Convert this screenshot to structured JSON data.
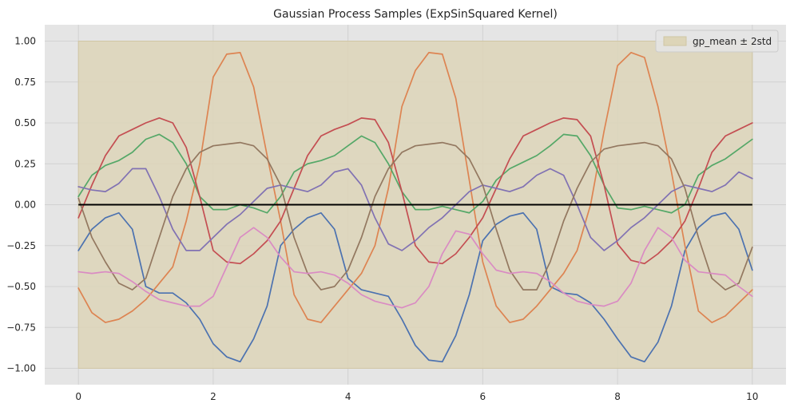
{
  "chart_data": {
    "type": "line",
    "title": "Gaussian Process Samples (ExpSinSquared Kernel)",
    "xlabel": "",
    "ylabel": "",
    "xlim": [
      -0.5,
      10.5
    ],
    "ylim": [
      -1.1,
      1.1
    ],
    "x_ticks": [
      0,
      2,
      4,
      6,
      8,
      10
    ],
    "x_tick_labels": [
      "0",
      "2",
      "4",
      "6",
      "8",
      "10"
    ],
    "y_ticks": [
      -1.0,
      -0.75,
      -0.5,
      -0.25,
      0.0,
      0.25,
      0.5,
      0.75,
      1.0
    ],
    "y_tick_labels": [
      "−1.00",
      "−0.75",
      "−0.50",
      "−0.25",
      "0.00",
      "0.25",
      "0.50",
      "0.75",
      "1.00"
    ],
    "grid": true,
    "legend_position": "top-right",
    "legend": [
      {
        "label": "gp_mean ± 2std",
        "color": "#ddd5b8"
      }
    ],
    "band": {
      "label": "gp_mean ± 2std",
      "x_range": [
        0,
        10
      ],
      "lower": -1.0,
      "upper": 1.0,
      "color": "#ddd5b8"
    },
    "mean": {
      "x_range": [
        0,
        10
      ],
      "value": 0.0,
      "color": "#000000"
    },
    "x": [
      0,
      0.2,
      0.4,
      0.6,
      0.8,
      1.0,
      1.2,
      1.4,
      1.6,
      1.8,
      2.0,
      2.2,
      2.4,
      2.6,
      2.8,
      3.0,
      3.2,
      3.4,
      3.6,
      3.8,
      4.0,
      4.2,
      4.4,
      4.6,
      4.8,
      5.0,
      5.2,
      5.4,
      5.6,
      5.8,
      6.0,
      6.2,
      6.4,
      6.6,
      6.8,
      7.0,
      7.2,
      7.4,
      7.6,
      7.8,
      8.0,
      8.2,
      8.4,
      8.6,
      8.8,
      9.0,
      9.2,
      9.4,
      9.6,
      9.8,
      10.0
    ],
    "series": [
      {
        "color": "#4c72b0",
        "values": [
          -0.28,
          -0.15,
          -0.08,
          -0.05,
          -0.15,
          -0.5,
          -0.54,
          -0.54,
          -0.6,
          -0.7,
          -0.85,
          -0.93,
          -0.96,
          -0.82,
          -0.62,
          -0.25,
          -0.15,
          -0.08,
          -0.05,
          -0.15,
          -0.45,
          -0.52,
          -0.54,
          -0.56,
          -0.7,
          -0.86,
          -0.95,
          -0.96,
          -0.8,
          -0.55,
          -0.22,
          -0.12,
          -0.07,
          -0.05,
          -0.15,
          -0.5,
          -0.54,
          -0.55,
          -0.6,
          -0.7,
          -0.82,
          -0.93,
          -0.96,
          -0.84,
          -0.62,
          -0.28,
          -0.14,
          -0.07,
          -0.05,
          -0.15,
          -0.4
        ]
      },
      {
        "color": "#dd8452",
        "values": [
          -0.51,
          -0.66,
          -0.72,
          -0.7,
          -0.65,
          -0.58,
          -0.48,
          -0.38,
          -0.1,
          0.25,
          0.78,
          0.92,
          0.93,
          0.72,
          0.3,
          -0.1,
          -0.55,
          -0.7,
          -0.72,
          -0.62,
          -0.52,
          -0.42,
          -0.25,
          0.1,
          0.6,
          0.82,
          0.93,
          0.92,
          0.65,
          0.15,
          -0.35,
          -0.62,
          -0.72,
          -0.7,
          -0.62,
          -0.52,
          -0.42,
          -0.28,
          0.0,
          0.45,
          0.85,
          0.93,
          0.9,
          0.6,
          0.2,
          -0.25,
          -0.65,
          -0.72,
          -0.68,
          -0.6,
          -0.52
        ]
      },
      {
        "color": "#55a868",
        "values": [
          0.05,
          0.18,
          0.24,
          0.27,
          0.32,
          0.4,
          0.43,
          0.38,
          0.25,
          0.05,
          -0.03,
          -0.03,
          0.0,
          -0.02,
          -0.05,
          0.05,
          0.2,
          0.25,
          0.27,
          0.3,
          0.36,
          0.42,
          0.38,
          0.25,
          0.08,
          -0.03,
          -0.03,
          -0.01,
          -0.03,
          -0.05,
          0.02,
          0.15,
          0.22,
          0.26,
          0.3,
          0.36,
          0.43,
          0.42,
          0.3,
          0.12,
          -0.02,
          -0.03,
          -0.01,
          -0.03,
          -0.05,
          0.0,
          0.18,
          0.24,
          0.28,
          0.34,
          0.4
        ]
      },
      {
        "color": "#c44e52",
        "values": [
          -0.08,
          0.12,
          0.3,
          0.42,
          0.46,
          0.5,
          0.53,
          0.5,
          0.35,
          0.05,
          -0.28,
          -0.35,
          -0.36,
          -0.3,
          -0.22,
          -0.1,
          0.1,
          0.3,
          0.42,
          0.46,
          0.49,
          0.53,
          0.52,
          0.38,
          0.08,
          -0.25,
          -0.35,
          -0.36,
          -0.3,
          -0.2,
          -0.08,
          0.1,
          0.28,
          0.42,
          0.46,
          0.5,
          0.53,
          0.52,
          0.42,
          0.12,
          -0.24,
          -0.34,
          -0.36,
          -0.3,
          -0.22,
          -0.1,
          0.1,
          0.32,
          0.42,
          0.46,
          0.5
        ]
      },
      {
        "color": "#8172b3",
        "values": [
          0.11,
          0.09,
          0.08,
          0.13,
          0.22,
          0.22,
          0.05,
          -0.15,
          -0.28,
          -0.28,
          -0.2,
          -0.12,
          -0.06,
          0.02,
          0.1,
          0.12,
          0.1,
          0.08,
          0.12,
          0.2,
          0.22,
          0.12,
          -0.08,
          -0.24,
          -0.28,
          -0.22,
          -0.14,
          -0.08,
          0.0,
          0.08,
          0.12,
          0.1,
          0.08,
          0.11,
          0.18,
          0.22,
          0.18,
          0.0,
          -0.2,
          -0.28,
          -0.22,
          -0.14,
          -0.08,
          0.0,
          0.08,
          0.12,
          0.1,
          0.08,
          0.12,
          0.2,
          0.16
        ]
      },
      {
        "color": "#937860",
        "values": [
          0.04,
          -0.2,
          -0.35,
          -0.48,
          -0.52,
          -0.45,
          -0.2,
          0.05,
          0.22,
          0.32,
          0.36,
          0.37,
          0.38,
          0.36,
          0.28,
          0.12,
          -0.2,
          -0.42,
          -0.52,
          -0.5,
          -0.4,
          -0.2,
          0.05,
          0.22,
          0.32,
          0.36,
          0.37,
          0.38,
          0.36,
          0.28,
          0.12,
          -0.15,
          -0.4,
          -0.52,
          -0.52,
          -0.35,
          -0.1,
          0.1,
          0.26,
          0.34,
          0.36,
          0.37,
          0.38,
          0.36,
          0.28,
          0.1,
          -0.2,
          -0.45,
          -0.52,
          -0.48,
          -0.26
        ]
      },
      {
        "color": "#da8bc3",
        "values": [
          -0.41,
          -0.42,
          -0.41,
          -0.42,
          -0.47,
          -0.53,
          -0.58,
          -0.6,
          -0.62,
          -0.62,
          -0.56,
          -0.38,
          -0.2,
          -0.14,
          -0.2,
          -0.32,
          -0.41,
          -0.42,
          -0.41,
          -0.43,
          -0.48,
          -0.55,
          -0.59,
          -0.61,
          -0.63,
          -0.6,
          -0.5,
          -0.3,
          -0.16,
          -0.18,
          -0.3,
          -0.4,
          -0.42,
          -0.41,
          -0.42,
          -0.47,
          -0.54,
          -0.59,
          -0.61,
          -0.62,
          -0.59,
          -0.48,
          -0.28,
          -0.14,
          -0.2,
          -0.34,
          -0.41,
          -0.42,
          -0.43,
          -0.5,
          -0.56
        ]
      }
    ]
  }
}
